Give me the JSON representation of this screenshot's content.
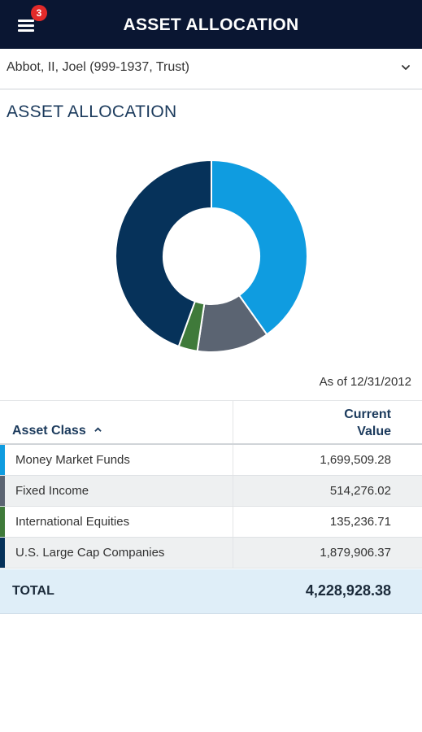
{
  "header": {
    "title": "ASSET ALLOCATION",
    "notification_count": "3"
  },
  "account": {
    "selected": "Abbot, II, Joel (999-1937, Trust)"
  },
  "section": {
    "title": "ASSET ALLOCATION",
    "as_of": "As of 12/31/2012"
  },
  "table": {
    "col_asset_class": "Asset Class",
    "col_value_line1": "Current",
    "col_value_line2": "Value",
    "rows": [
      {
        "name": "Money Market Funds",
        "value": "1,699,509.28",
        "color": "#0f9ce0"
      },
      {
        "name": "Fixed Income",
        "value": "514,276.02",
        "color": "#5b6472"
      },
      {
        "name": "International Equities",
        "value": "135,236.71",
        "color": "#3f7a3a"
      },
      {
        "name": "U.S. Large Cap Companies",
        "value": "1,879,906.37",
        "color": "#06325a"
      }
    ],
    "total_label": "TOTAL",
    "total_value": "4,228,928.38"
  },
  "chart_data": {
    "type": "pie",
    "categories": [
      "Money Market Funds",
      "Fixed Income",
      "International Equities",
      "U.S. Large Cap Companies"
    ],
    "values": [
      1699509.28,
      514276.02,
      135236.71,
      1879906.37
    ],
    "colors": [
      "#0f9ce0",
      "#5b6472",
      "#3f7a3a",
      "#06325a"
    ]
  }
}
